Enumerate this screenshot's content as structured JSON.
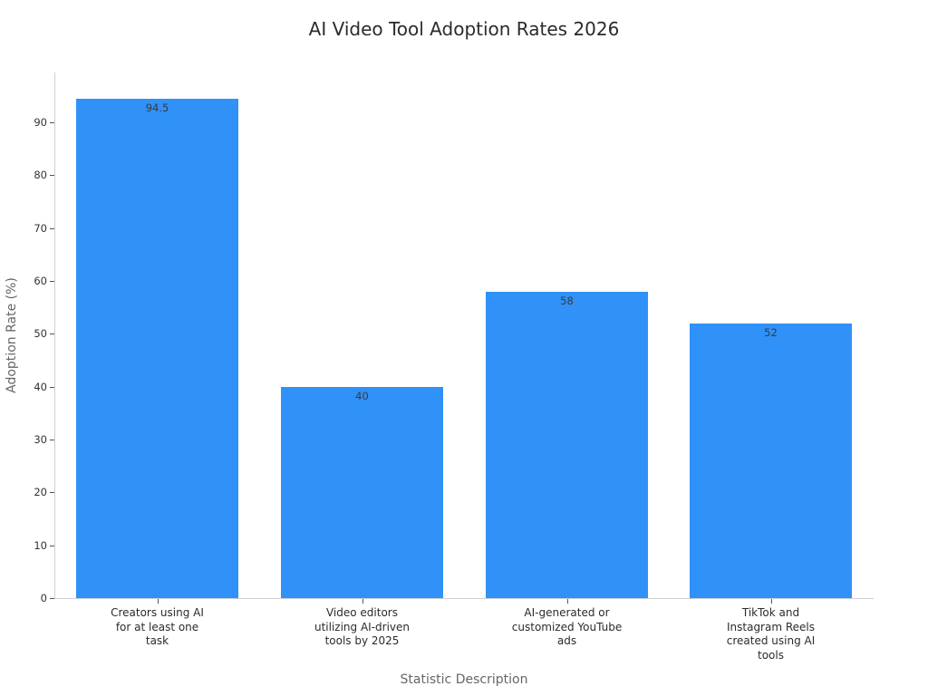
{
  "chart_data": {
    "type": "bar",
    "title": "AI Video Tool Adoption Rates 2026",
    "xlabel": "Statistic Description",
    "ylabel": "Adoption Rate (%)",
    "categories": [
      "Creators using AI for at least one task",
      "Video editors utilizing AI-driven tools by 2025",
      "AI-generated or customized YouTube ads",
      "TikTok and Instagram Reels created using AI tools"
    ],
    "category_lines": [
      [
        "Creators using AI",
        "for at least one",
        "task"
      ],
      [
        "Video editors",
        "utilizing AI-driven",
        "tools by 2025"
      ],
      [
        "AI-generated or",
        "customized YouTube",
        "ads"
      ],
      [
        "TikTok and",
        "Instagram Reels",
        "created using AI",
        "tools"
      ]
    ],
    "values": [
      94.5,
      40,
      58,
      52
    ],
    "value_labels": [
      "94.5",
      "40",
      "58",
      "52"
    ],
    "yticks": [
      0,
      10,
      20,
      30,
      40,
      50,
      60,
      70,
      80,
      90
    ],
    "ylim": [
      0,
      99.4
    ],
    "grid": false,
    "legend": null,
    "bar_color": "#3091f8"
  }
}
